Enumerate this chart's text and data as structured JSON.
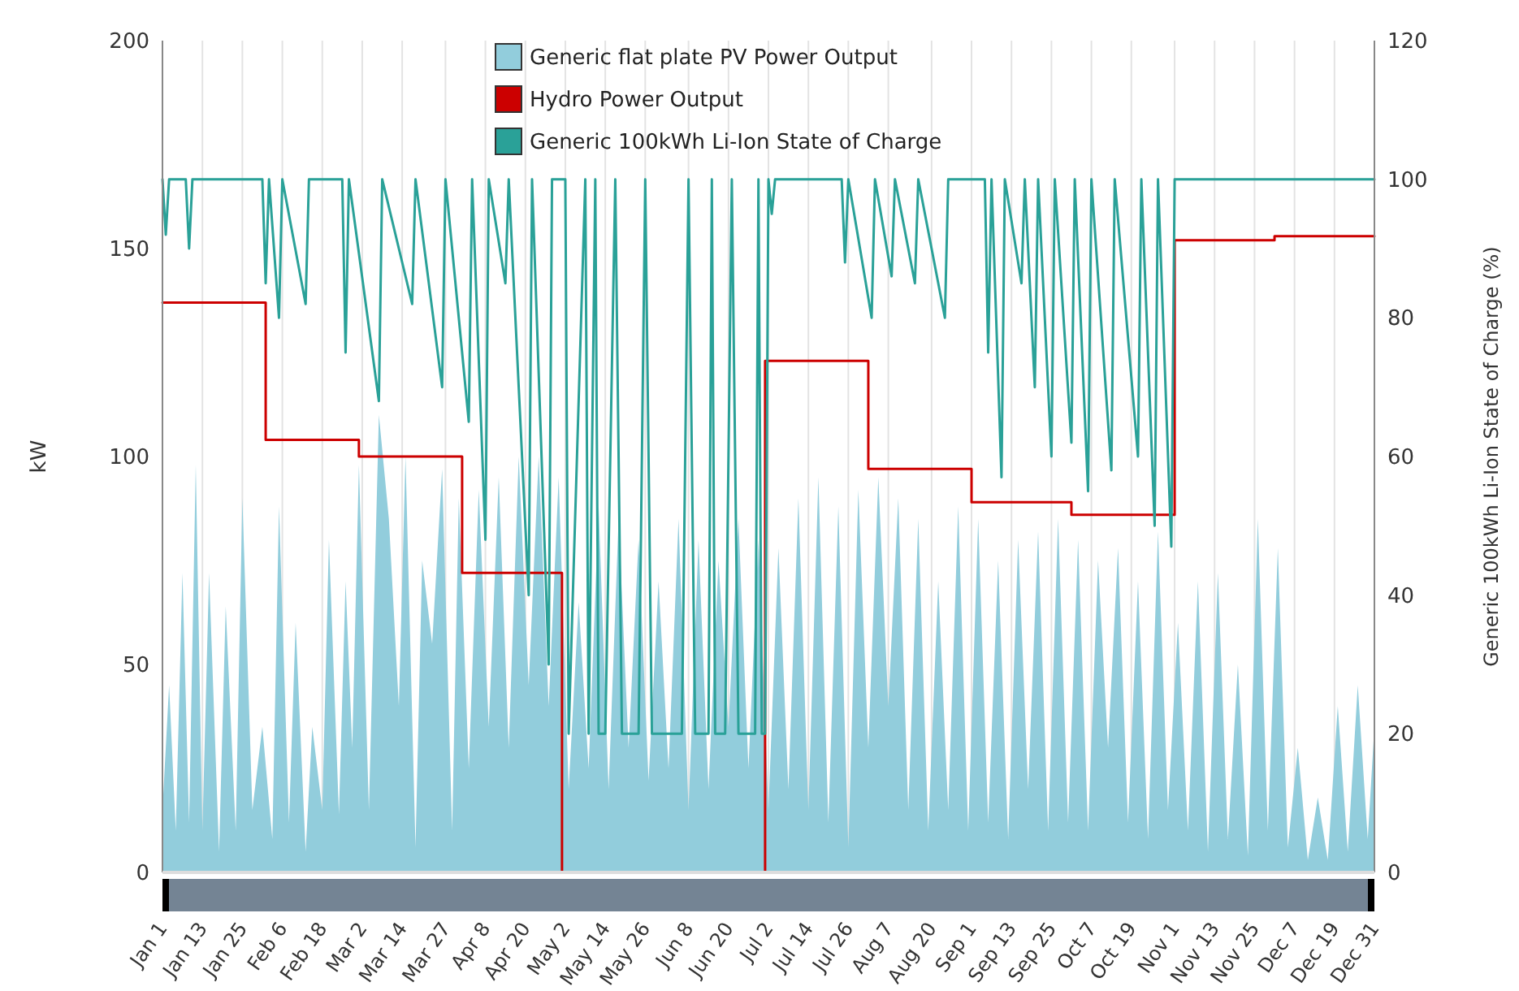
{
  "chart_data": {
    "type": "area",
    "ylabel": "kW",
    "y2label": "Generic 100kWh Li-Ion State of Charge (%)",
    "xlim": [
      "--01-01",
      "--12-31"
    ],
    "xticks": [
      {
        "value": "--01-01",
        "label": "Jan 1"
      },
      {
        "value": "--01-13",
        "label": "Jan 13"
      },
      {
        "value": "--01-25",
        "label": "Jan 25"
      },
      {
        "value": "--02-06",
        "label": "Feb 6"
      },
      {
        "value": "--02-18",
        "label": "Feb 18"
      },
      {
        "value": "--03-02",
        "label": "Mar 2"
      },
      {
        "value": "--03-14",
        "label": "Mar 14"
      },
      {
        "value": "--03-27",
        "label": "Mar 27"
      },
      {
        "value": "--04-08",
        "label": "Apr 8"
      },
      {
        "value": "--04-20",
        "label": "Apr 20"
      },
      {
        "value": "--05-02",
        "label": "May 2"
      },
      {
        "value": "--05-14",
        "label": "May 14"
      },
      {
        "value": "--05-26",
        "label": "May 26"
      },
      {
        "value": "--06-08",
        "label": "Jun 8"
      },
      {
        "value": "--06-20",
        "label": "Jun 20"
      },
      {
        "value": "--07-02",
        "label": "Jul 2"
      },
      {
        "value": "--07-14",
        "label": "Jul 14"
      },
      {
        "value": "--07-26",
        "label": "Jul 26"
      },
      {
        "value": "--08-07",
        "label": "Aug 7"
      },
      {
        "value": "--08-20",
        "label": "Aug 20"
      },
      {
        "value": "--09-01",
        "label": "Sep 1"
      },
      {
        "value": "--09-13",
        "label": "Sep 13"
      },
      {
        "value": "--09-25",
        "label": "Sep 25"
      },
      {
        "value": "--10-07",
        "label": "Oct 7"
      },
      {
        "value": "--10-19",
        "label": "Oct 19"
      },
      {
        "value": "--11-01",
        "label": "Nov 1"
      },
      {
        "value": "--11-13",
        "label": "Nov 13"
      },
      {
        "value": "--11-25",
        "label": "Nov 25"
      },
      {
        "value": "--12-07",
        "label": "Dec 7"
      },
      {
        "value": "--12-19",
        "label": "Dec 19"
      },
      {
        "value": "--12-31",
        "label": "Dec 31"
      }
    ],
    "ylim": [
      0,
      200
    ],
    "yticks": [
      0,
      50,
      100,
      150,
      200
    ],
    "y2lim": [
      0,
      120
    ],
    "y2ticks": [
      0,
      20,
      40,
      60,
      80,
      100,
      120
    ],
    "grid": "x",
    "legend": "top",
    "series": [
      {
        "name": "Generic flat plate PV Power Output",
        "color": "#92cddc",
        "x": [
          "--01-01",
          "--01-03",
          "--01-05",
          "--01-07",
          "--01-09",
          "--01-11",
          "--01-13",
          "--01-15",
          "--01-18",
          "--01-20",
          "--01-23",
          "--01-25",
          "--01-28",
          "--01-31",
          "--02-03",
          "--02-05",
          "--02-08",
          "--02-10",
          "--02-13",
          "--02-15",
          "--02-18",
          "--02-20",
          "--02-23",
          "--02-25",
          "--02-27",
          "--03-01",
          "--03-04",
          "--03-07",
          "--03-10",
          "--03-13",
          "--03-15",
          "--03-18",
          "--03-20",
          "--03-23",
          "--03-26",
          "--03-29",
          "--03-31",
          "--04-03",
          "--04-06",
          "--04-09",
          "--04-12",
          "--04-15",
          "--04-18",
          "--04-21",
          "--04-24",
          "--04-27",
          "--04-30",
          "--05-03",
          "--05-06",
          "--05-09",
          "--05-12",
          "--05-15",
          "--05-18",
          "--05-21",
          "--05-24",
          "--05-27",
          "--05-30",
          "--06-02",
          "--06-05",
          "--06-08",
          "--06-11",
          "--06-14",
          "--06-17",
          "--06-20",
          "--06-23",
          "--06-26",
          "--06-29",
          "--07-02",
          "--07-05",
          "--07-08",
          "--07-11",
          "--07-14",
          "--07-17",
          "--07-20",
          "--07-23",
          "--07-26",
          "--07-29",
          "--08-01",
          "--08-04",
          "--08-07",
          "--08-10",
          "--08-13",
          "--08-16",
          "--08-19",
          "--08-22",
          "--08-25",
          "--08-28",
          "--08-31",
          "--09-03",
          "--09-06",
          "--09-09",
          "--09-12",
          "--09-15",
          "--09-18",
          "--09-21",
          "--09-24",
          "--09-27",
          "--09-30",
          "--10-03",
          "--10-06",
          "--10-09",
          "--10-12",
          "--10-15",
          "--10-18",
          "--10-21",
          "--10-24",
          "--10-27",
          "--10-30",
          "--11-02",
          "--11-05",
          "--11-08",
          "--11-11",
          "--11-14",
          "--11-17",
          "--11-20",
          "--11-23",
          "--11-26",
          "--11-29",
          "--12-02",
          "--12-05",
          "--12-08",
          "--12-11",
          "--12-14",
          "--12-17",
          "--12-20",
          "--12-23",
          "--12-26",
          "--12-29",
          "--12-31"
        ],
        "values": [
          15,
          45,
          10,
          72,
          12,
          98,
          10,
          72,
          5,
          64,
          10,
          90,
          15,
          35,
          8,
          88,
          12,
          60,
          5,
          35,
          15,
          80,
          14,
          70,
          30,
          98,
          15,
          110,
          85,
          40,
          100,
          6,
          75,
          55,
          97,
          10,
          90,
          25,
          92,
          35,
          95,
          30,
          100,
          45,
          100,
          40,
          95,
          20,
          65,
          25,
          88,
          20,
          85,
          30,
          80,
          22,
          70,
          25,
          85,
          15,
          80,
          20,
          75,
          35,
          85,
          25,
          80,
          15,
          78,
          20,
          90,
          15,
          95,
          12,
          88,
          6,
          92,
          30,
          95,
          40,
          90,
          15,
          85,
          10,
          70,
          15,
          88,
          10,
          85,
          12,
          75,
          8,
          80,
          20,
          82,
          10,
          85,
          12,
          80,
          10,
          75,
          30,
          78,
          12,
          70,
          8,
          82,
          15,
          60,
          10,
          70,
          5,
          72,
          8,
          50,
          4,
          85,
          10,
          78,
          6,
          30,
          3,
          18,
          3,
          40,
          5,
          45,
          8,
          35
        ]
      },
      {
        "name": "Hydro Power Output",
        "type": "step",
        "color": "#cc0000",
        "x": [
          "--01-01",
          "--02-01",
          "--03-01",
          "--04-01",
          "--05-01",
          "--07-01",
          "--08-01",
          "--09-01",
          "--10-01",
          "--11-01",
          "--12-01",
          "--12-31"
        ],
        "values": [
          137,
          104,
          100,
          72,
          0,
          123,
          97,
          89,
          86,
          152,
          153,
          153
        ]
      },
      {
        "name": "Generic 100kWh Li-Ion State of Charge",
        "type": "line",
        "axis": "y2",
        "color": "#2aa198",
        "x": [
          "--01-01",
          "--01-02",
          "--01-03",
          "--01-08",
          "--01-09",
          "--01-10",
          "--01-31",
          "--02-01",
          "--02-02",
          "--02-05",
          "--02-06",
          "--02-13",
          "--02-14",
          "--02-24",
          "--02-25",
          "--02-26",
          "--03-07",
          "--03-08",
          "--03-17",
          "--03-18",
          "--03-26",
          "--03-27",
          "--04-03",
          "--04-04",
          "--04-08",
          "--04-09",
          "--04-14",
          "--04-15",
          "--04-21",
          "--04-22",
          "--04-27",
          "--04-28",
          "--05-02",
          "--05-03",
          "--05-08",
          "--05-09",
          "--05-11",
          "--05-12",
          "--05-14",
          "--05-17",
          "--05-19",
          "--05-24",
          "--05-26",
          "--05-28",
          "--06-06",
          "--06-08",
          "--06-10",
          "--06-14",
          "--06-15",
          "--06-16",
          "--06-19",
          "--06-21",
          "--06-23",
          "--06-28",
          "--06-29",
          "--06-30",
          "--07-01",
          "--07-02",
          "--07-03",
          "--07-04",
          "--07-24",
          "--07-25",
          "--07-26",
          "--08-02",
          "--08-03",
          "--08-08",
          "--08-09",
          "--08-15",
          "--08-16",
          "--08-24",
          "--08-25",
          "--09-05",
          "--09-06",
          "--09-07",
          "--09-10",
          "--09-11",
          "--09-16",
          "--09-17",
          "--09-20",
          "--09-21",
          "--09-25",
          "--09-26",
          "--10-01",
          "--10-02",
          "--10-06",
          "--10-07",
          "--10-13",
          "--10-14",
          "--10-21",
          "--10-22",
          "--10-26",
          "--10-27",
          "--10-31",
          "--11-01",
          "--12-31"
        ],
        "values": [
          100,
          92,
          100,
          100,
          90,
          100,
          100,
          85,
          100,
          80,
          100,
          82,
          100,
          100,
          75,
          100,
          68,
          100,
          82,
          100,
          70,
          100,
          65,
          100,
          48,
          100,
          85,
          100,
          40,
          100,
          30,
          100,
          100,
          20,
          100,
          20,
          100,
          20,
          20,
          100,
          20,
          20,
          100,
          20,
          20,
          100,
          20,
          20,
          100,
          20,
          20,
          100,
          20,
          20,
          100,
          20,
          20,
          100,
          95,
          100,
          100,
          88,
          100,
          80,
          100,
          86,
          100,
          85,
          100,
          80,
          100,
          100,
          75,
          100,
          57,
          100,
          85,
          100,
          70,
          100,
          60,
          100,
          62,
          100,
          55,
          100,
          58,
          100,
          60,
          100,
          50,
          100,
          47,
          100,
          100
        ]
      }
    ]
  }
}
